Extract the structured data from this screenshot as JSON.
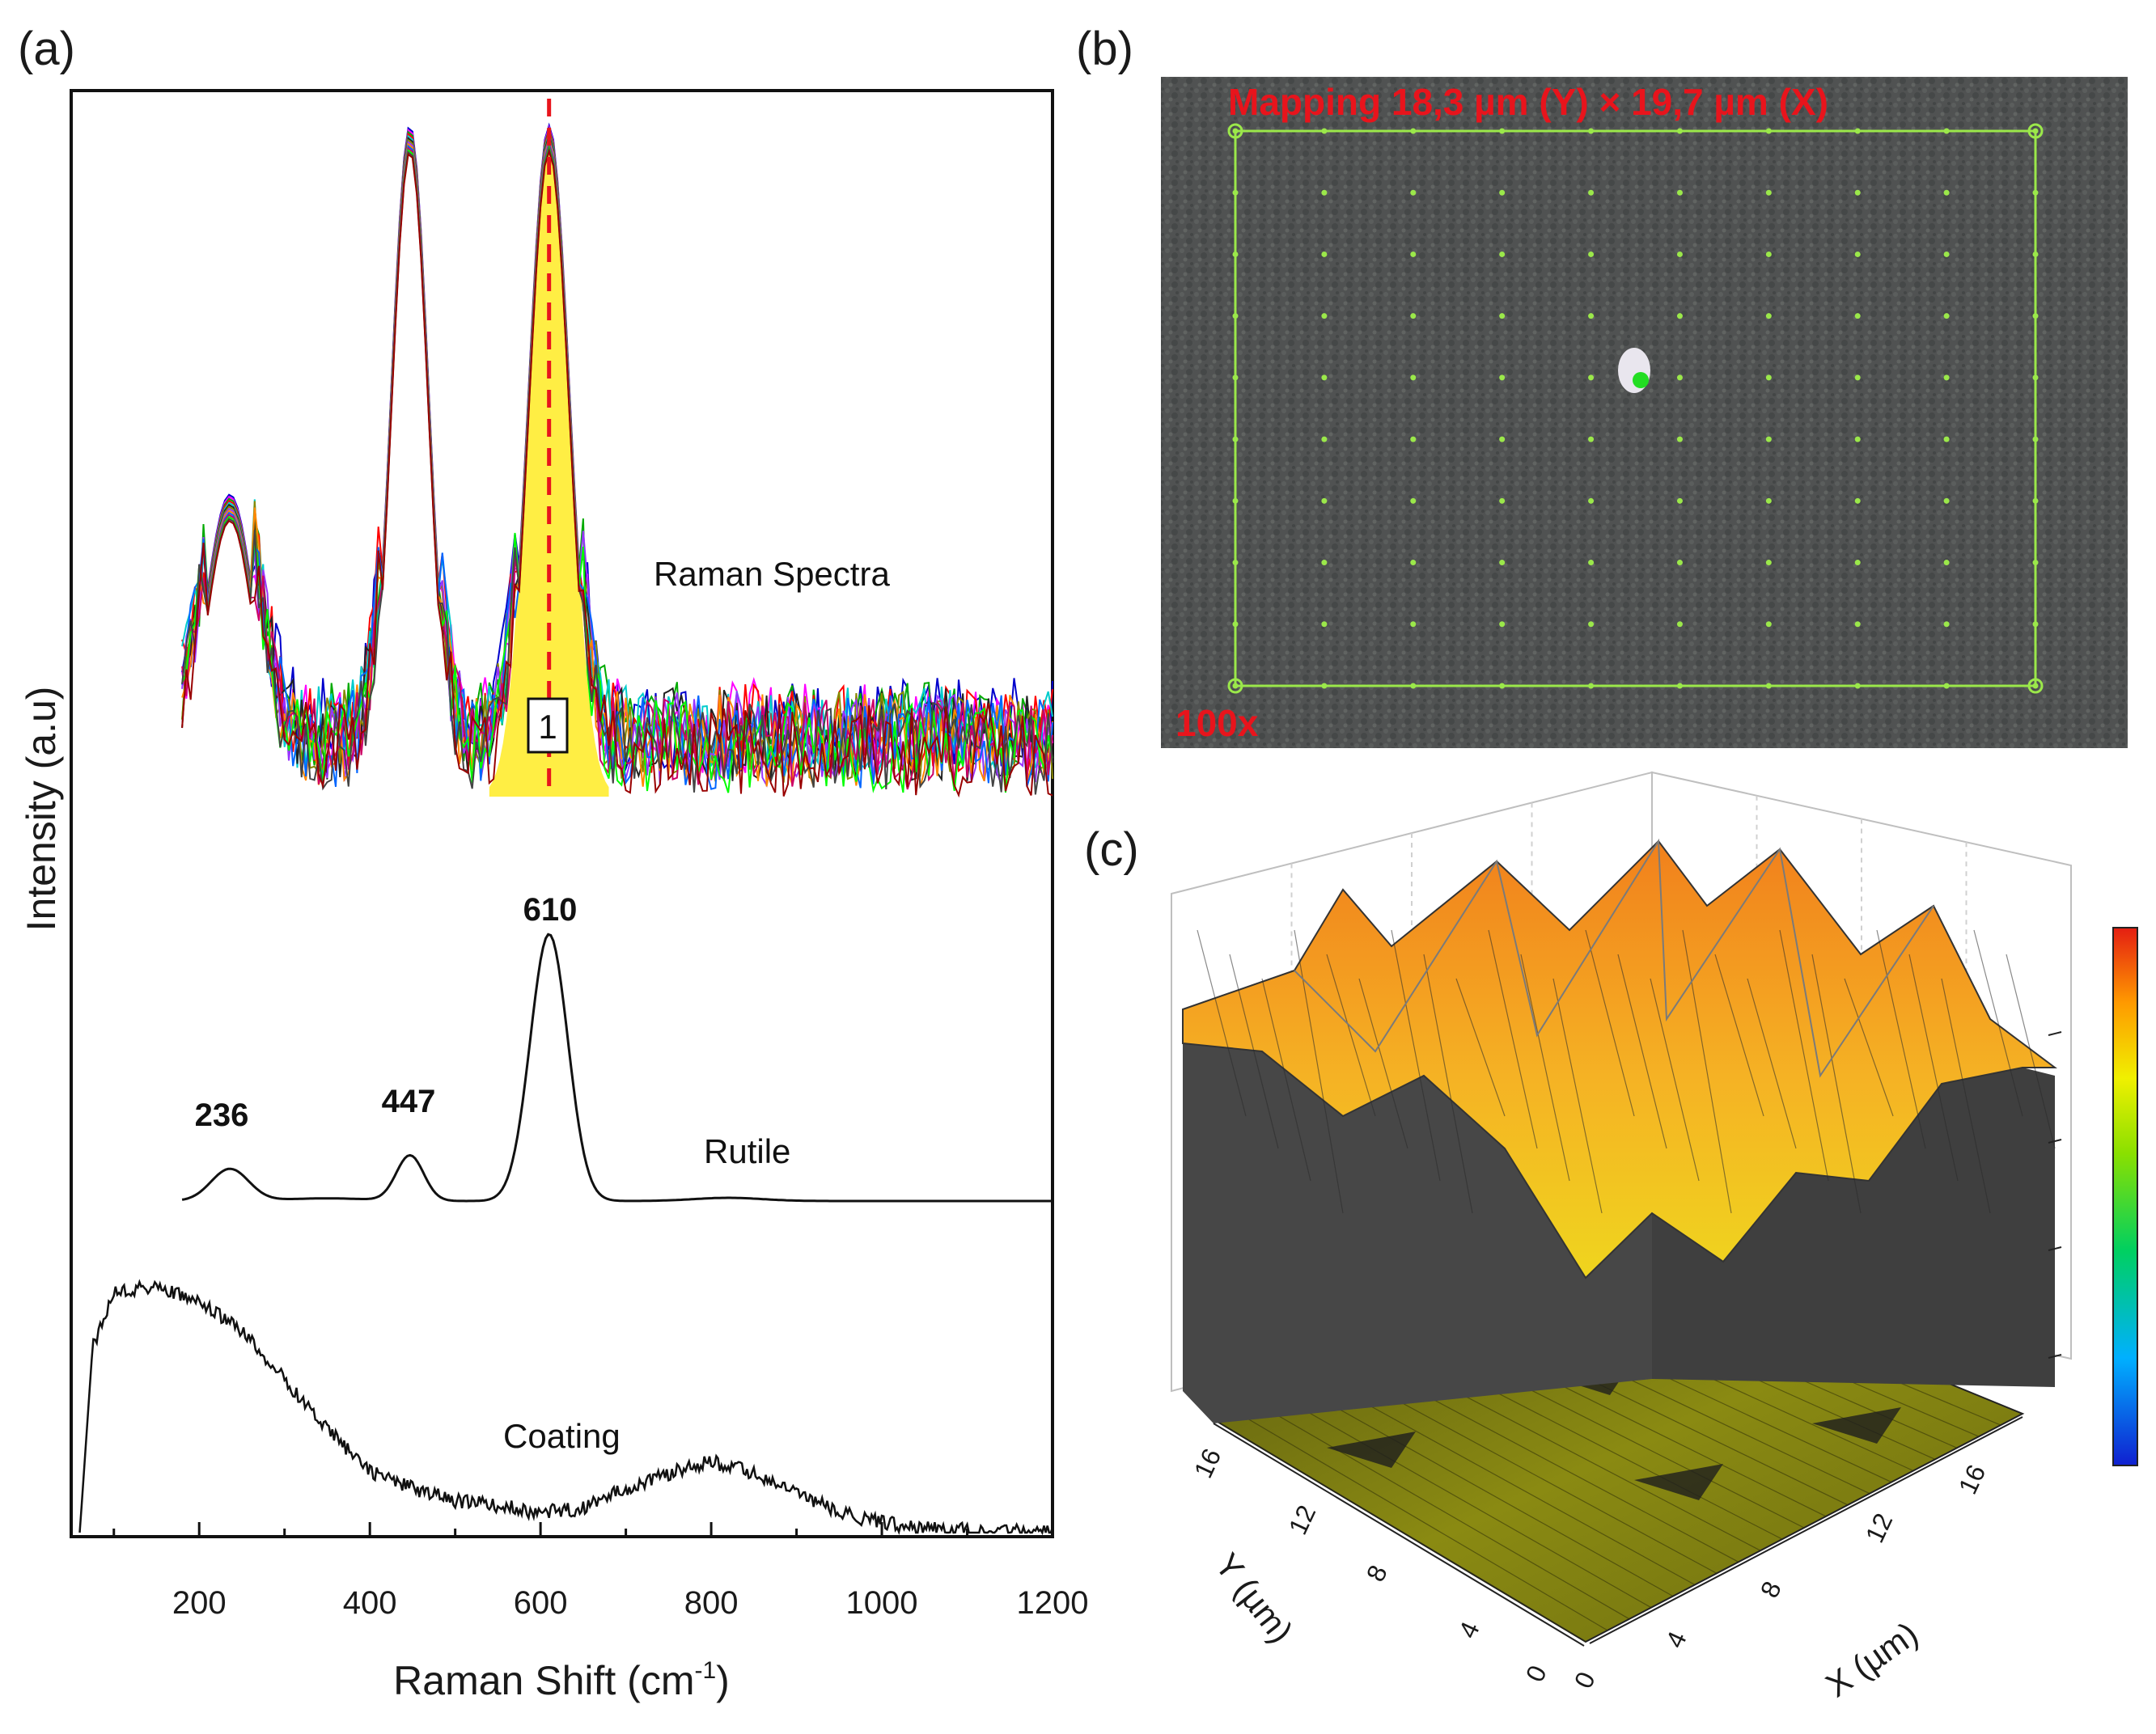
{
  "panels": {
    "a": {
      "label": "(a)"
    },
    "b": {
      "label": "(b)"
    },
    "c": {
      "label": "(c)"
    }
  },
  "chart_data": [
    {
      "type": "line",
      "panel": "a",
      "title": "",
      "xlabel_main": "Raman Shift (cm",
      "xlabel_sup": "-1",
      "xlabel_close": ")",
      "ylabel": "Intensity (a.u)",
      "xlim": [
        50,
        1200
      ],
      "x_ticks": [
        200,
        400,
        600,
        800,
        1000,
        1200
      ],
      "x_tick_labels": [
        "200",
        "400",
        "600",
        "800",
        "1000",
        "1200"
      ],
      "marker_position": 610,
      "marker_box_label": "1",
      "series": [
        {
          "name": "Raman Spectra",
          "color_set": "multicolor",
          "peaks": [
            {
              "x": 236,
              "height": 0.5
            },
            {
              "x": 447,
              "height": 1.0
            },
            {
              "x": 610,
              "height": 1.0
            }
          ]
        },
        {
          "name": "Rutile",
          "peaks": [
            {
              "x": 236,
              "height": 0.12
            },
            {
              "x": 447,
              "height": 0.17
            },
            {
              "x": 610,
              "height": 1.0
            }
          ]
        },
        {
          "name": "Coating",
          "points": [
            [
              60,
              0.0
            ],
            [
              75,
              0.75
            ],
            [
              100,
              0.98
            ],
            [
              150,
              1.0
            ],
            [
              200,
              0.93
            ],
            [
              250,
              0.82
            ],
            [
              300,
              0.62
            ],
            [
              350,
              0.42
            ],
            [
              400,
              0.25
            ],
            [
              450,
              0.18
            ],
            [
              500,
              0.13
            ],
            [
              550,
              0.11
            ],
            [
              600,
              0.08
            ],
            [
              650,
              0.1
            ],
            [
              700,
              0.18
            ],
            [
              750,
              0.24
            ],
            [
              800,
              0.29
            ],
            [
              850,
              0.24
            ],
            [
              900,
              0.16
            ],
            [
              950,
              0.08
            ],
            [
              1000,
              0.04
            ],
            [
              1050,
              0.02
            ],
            [
              1100,
              0.01
            ],
            [
              1200,
              0.0
            ]
          ]
        }
      ],
      "peak_labels": [
        "236",
        "447",
        "610"
      ]
    },
    {
      "type": "heatmap",
      "panel": "c",
      "xlabel": "X (µm)",
      "ylabel": "Y (µm)",
      "x_ticks": [
        "0",
        "4",
        "8",
        "12",
        "16"
      ],
      "y_ticks": [
        "0",
        "4",
        "8",
        "12",
        "16"
      ],
      "colorbar": [
        "#1020d0",
        "#00b0ff",
        "#00d060",
        "#8ae000",
        "#f0f000",
        "#ff9a00",
        "#e41e12"
      ]
    }
  ],
  "micrograph": {
    "mapping_text": "Mapping 18,3 µm (Y) × 19,7 µm (X)",
    "magnification": "100x",
    "grid_color": "#9be84a"
  },
  "colors": {
    "marker_line": "#e8141c",
    "marker_fill": "#ffee44",
    "surface_high": "#f18a1e",
    "surface_low": "#f2d21e",
    "wall": "#4a4a4a"
  }
}
